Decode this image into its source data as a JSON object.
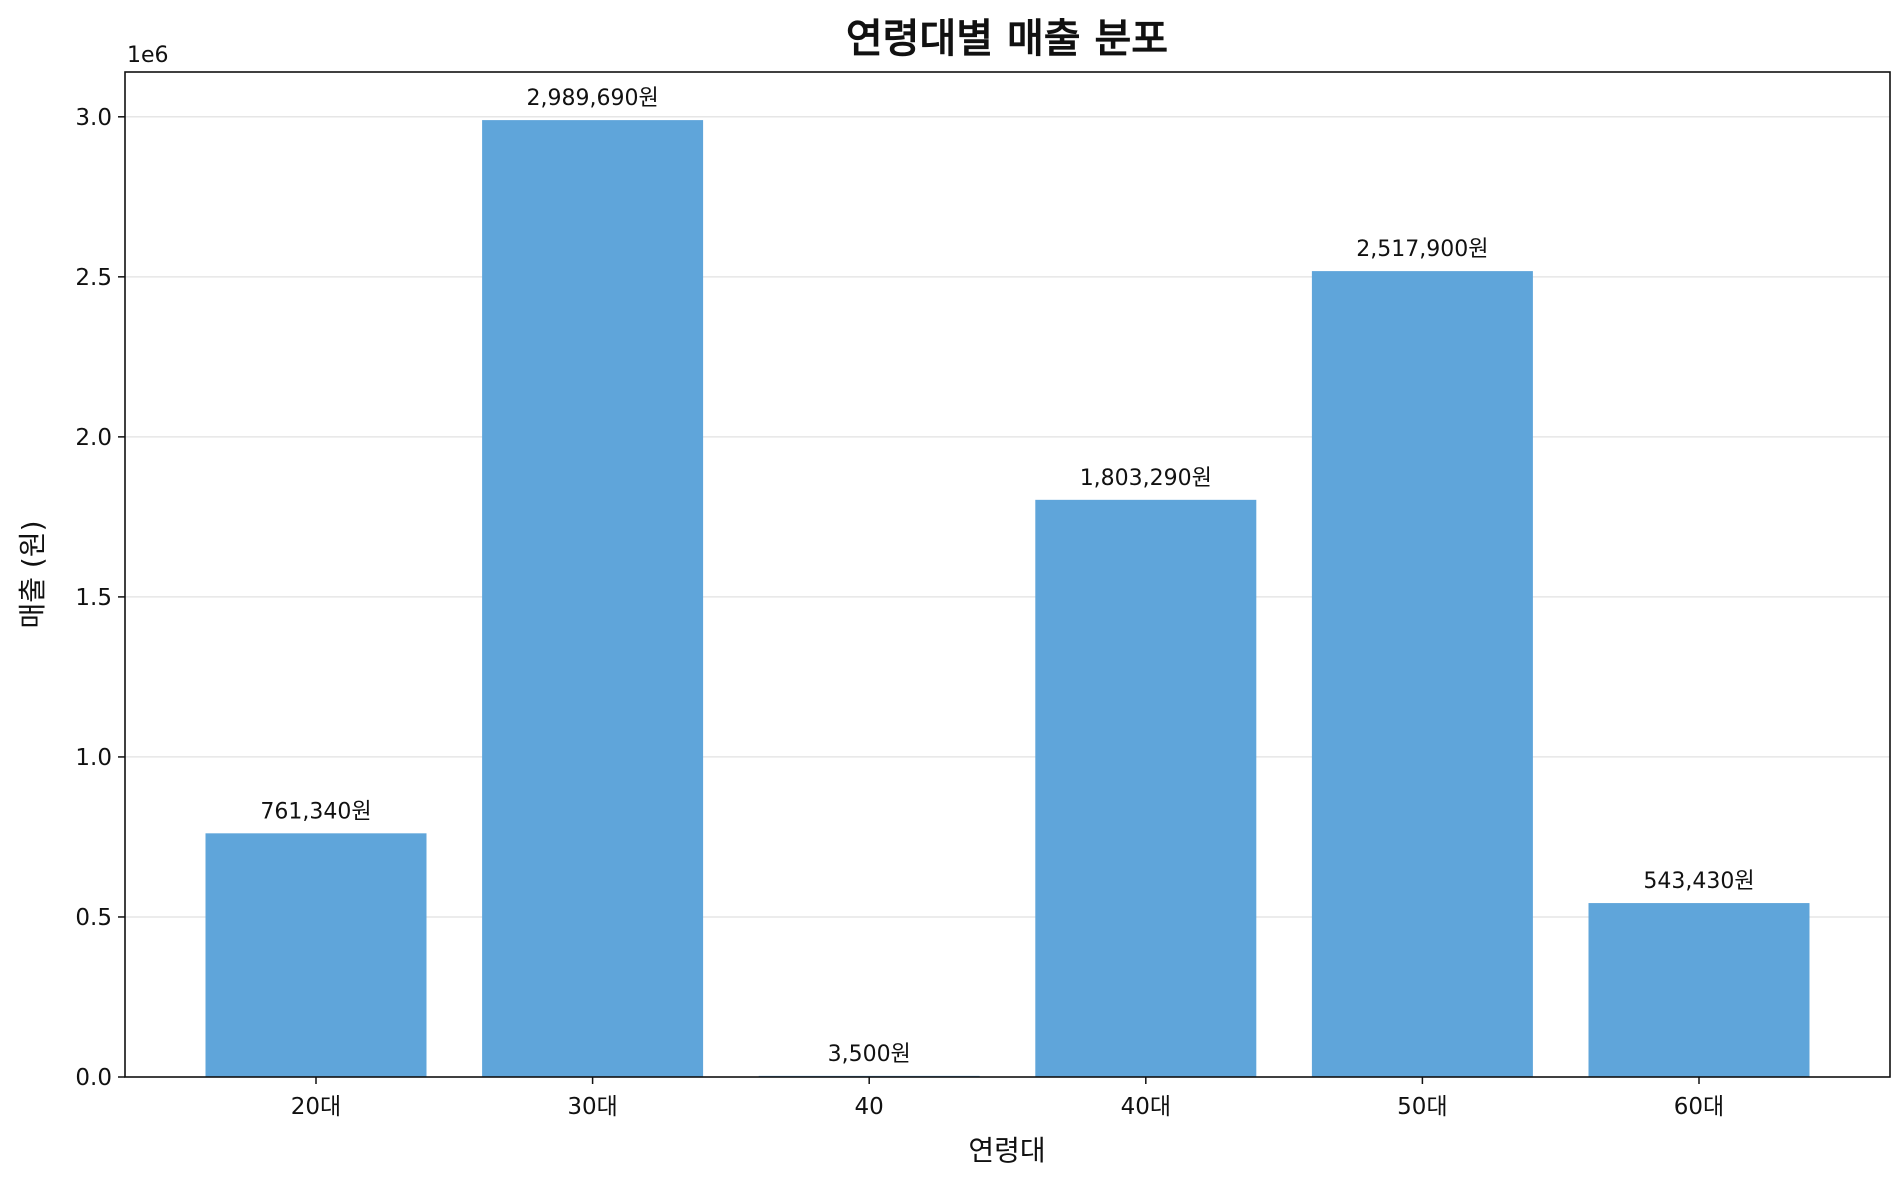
{
  "chart_data": {
    "type": "bar",
    "title": "연령대별 매출 분포",
    "xlabel": "연령대",
    "ylabel": "매출 (원)",
    "y_offset_label": "1e6",
    "y_scale": 1000000,
    "categories": [
      "20대",
      "30대",
      "40",
      "40대",
      "50대",
      "60대"
    ],
    "values": [
      761340,
      2989690,
      3500,
      1803290,
      2517900,
      543430
    ],
    "data_labels": [
      "761,340원",
      "2,989,690원",
      "3,500원",
      "1,803,290원",
      "2,517,900원",
      "543,430원"
    ],
    "ylim": [
      0,
      3140000
    ],
    "y_ticks": [
      0,
      500000,
      1000000,
      1500000,
      2000000,
      2500000,
      3000000
    ],
    "y_tick_labels": [
      "0.0",
      "0.5",
      "1.0",
      "1.5",
      "2.0",
      "2.5",
      "3.0"
    ],
    "grid": "horizontal",
    "bar_color": "#5fa5da",
    "legend": "none"
  }
}
